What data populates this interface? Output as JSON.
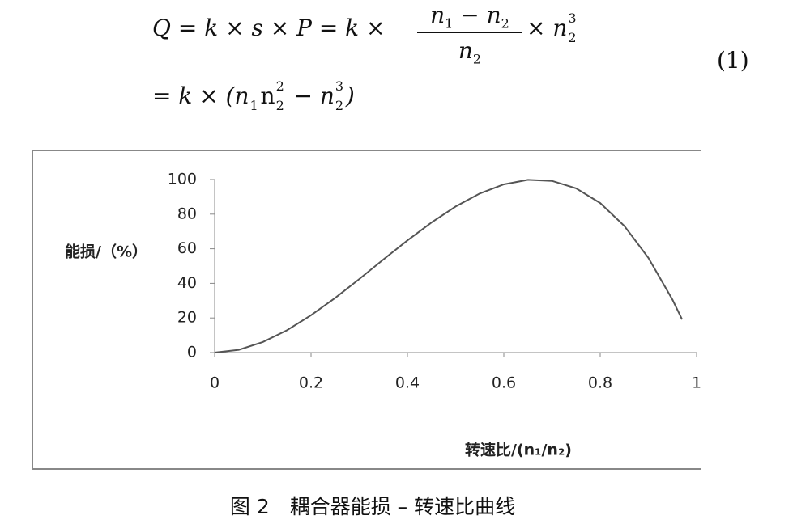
{
  "equation": {
    "line1_lhs": "Q = k × s × P = k ×",
    "numerator": [
      "n",
      "1",
      "− n",
      "2"
    ],
    "denominator": [
      "n",
      "2"
    ],
    "tail": [
      "× n",
      "2",
      "3"
    ],
    "line2": [
      "= k × (n",
      "1",
      "n",
      "2",
      "2",
      "− n",
      "2",
      "3",
      ")"
    ],
    "number": "(1)"
  },
  "chart_data": {
    "type": "line",
    "y_label": "能损/（%）",
    "x_label": "转速比/(n₁/n₂)",
    "x": [
      0,
      0.05,
      0.1,
      0.15,
      0.2,
      0.25,
      0.3,
      0.35,
      0.4,
      0.45,
      0.5,
      0.55,
      0.6,
      0.65,
      0.7,
      0.75,
      0.8,
      0.85,
      0.9,
      0.95,
      0.97
    ],
    "values": [
      0,
      1.6,
      6.1,
      12.9,
      21.6,
      31.6,
      42.5,
      53.8,
      64.8,
      75.2,
      84.4,
      91.9,
      97.2,
      99.8,
      99.2,
      94.9,
      86.4,
      73.2,
      54.7,
      30.5,
      19.1
    ],
    "color": "#555555",
    "xlim": [
      0,
      1
    ],
    "ylim": [
      0,
      100
    ],
    "xticks": [
      0,
      0.2,
      0.4,
      0.6,
      0.8,
      1
    ],
    "yticks": [
      0,
      20,
      40,
      60,
      80,
      100
    ]
  },
  "caption": "图 2　耦合器能损 – 转速比曲线"
}
